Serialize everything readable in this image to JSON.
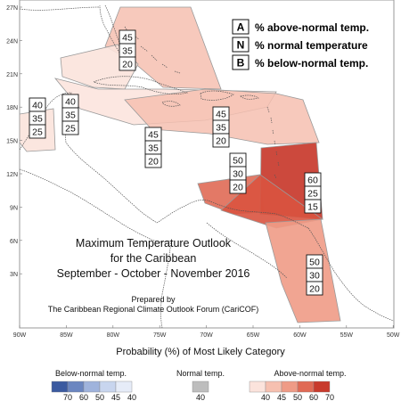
{
  "legend_key": {
    "rows": [
      {
        "letter": "A",
        "text": "% above-normal temp."
      },
      {
        "letter": "N",
        "text": "% normal temperature"
      },
      {
        "letter": "B",
        "text": "% below-normal temp."
      }
    ]
  },
  "map": {
    "lat_labels": [
      "27N",
      "24N",
      "21N",
      "18N",
      "15N",
      "12N",
      "9N",
      "6N",
      "3N"
    ],
    "lon_labels": [
      "90W",
      "85W",
      "80W",
      "75W",
      "70W",
      "65W",
      "60W",
      "55W",
      "50W"
    ],
    "title_lines": [
      "Maximum Temperature Outlook",
      "for the Caribbean",
      "September - October - November 2016"
    ],
    "prepared_lines": [
      "Prepared by",
      "The Caribbean Regional Climate Outlook Forum (CariCOF)"
    ],
    "probability_boxes": [
      {
        "id": "bahamas",
        "values": [
          "45",
          "35",
          "20"
        ]
      },
      {
        "id": "gulf-west",
        "values": [
          "40",
          "35",
          "25"
        ]
      },
      {
        "id": "yucatan",
        "values": [
          "40",
          "35",
          "25"
        ]
      },
      {
        "id": "central-caribbean",
        "values": [
          "45",
          "35",
          "20"
        ]
      },
      {
        "id": "greater-antilles",
        "values": [
          "45",
          "35",
          "20"
        ]
      },
      {
        "id": "eastern-caribbean",
        "values": [
          "50",
          "30",
          "20"
        ]
      },
      {
        "id": "lesser-antilles-south",
        "values": [
          "60",
          "25",
          "15"
        ]
      },
      {
        "id": "guianas",
        "values": [
          "50",
          "30",
          "20"
        ]
      }
    ]
  },
  "colorbar": {
    "title": "Probability (%) of Most Likely Category",
    "below": {
      "label": "Below-normal temp.",
      "ticks": [
        "70",
        "60",
        "50",
        "45",
        "40"
      ],
      "colors": [
        "#3b5aa0",
        "#6b86c0",
        "#9fb3dc",
        "#c8d5ee",
        "#e6ecf8"
      ]
    },
    "normal": {
      "label": "Normal temp.",
      "ticks": [
        "40"
      ],
      "colors": [
        "#bdbdbd"
      ]
    },
    "above": {
      "label": "Above-normal temp.",
      "ticks": [
        "40",
        "45",
        "50",
        "60",
        "70"
      ],
      "colors": [
        "#fbe3dc",
        "#f6c0b0",
        "#ef9b86",
        "#e06a55",
        "#c83a2c"
      ]
    }
  }
}
